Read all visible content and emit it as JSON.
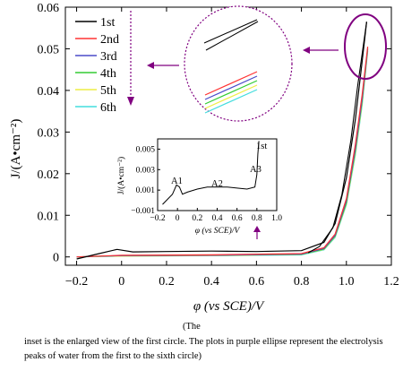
{
  "caption": {
    "lead": "(The",
    "body": "inset is the enlarged view of the first circle. The plots in purple ellipse represent the electrolysis peaks of water from the first to the sixth circle)"
  },
  "colors": {
    "annotation": "#800080",
    "axis": "#000000"
  },
  "chart_data": {
    "type": "line",
    "xlabel": "φ (vs SCE)/V",
    "ylabel": "J/(A•cm⁻²)",
    "xlim": [
      -0.25,
      1.2
    ],
    "ylim": [
      -0.002,
      0.06
    ],
    "x_ticks": [
      "−0.2",
      "0",
      "0.2",
      "0.4",
      "0.6",
      "0.8",
      "1.0",
      "1.2"
    ],
    "y_ticks": [
      "0",
      "0.01",
      "0.02",
      "0.03",
      "0.04",
      "0.05",
      "0.06"
    ],
    "legend_position": "top-left",
    "series": [
      {
        "name": "1st",
        "color": "#000000",
        "x": [
          -0.2,
          -0.1,
          -0.02,
          0.05,
          0.2,
          0.4,
          0.6,
          0.8,
          0.9,
          0.95,
          1.0,
          1.04,
          1.07,
          1.09
        ],
        "y": [
          -0.0005,
          0.0008,
          0.0018,
          0.0012,
          0.0013,
          0.0014,
          0.0013,
          0.0015,
          0.0035,
          0.008,
          0.019,
          0.033,
          0.047,
          0.0565
        ]
      },
      {
        "name": "2nd",
        "color": "#ff3333",
        "x": [
          -0.2,
          0.0,
          0.4,
          0.8,
          0.9,
          0.95,
          1.0,
          1.04,
          1.07,
          1.095
        ],
        "y": [
          0.0,
          0.0004,
          0.0005,
          0.0008,
          0.0022,
          0.0055,
          0.014,
          0.027,
          0.039,
          0.0505
        ]
      },
      {
        "name": "3rd",
        "color": "#4b4bc8",
        "x": [
          -0.2,
          0.0,
          0.4,
          0.8,
          0.9,
          0.95,
          1.0,
          1.04,
          1.07,
          1.095
        ],
        "y": [
          0.0,
          0.0003,
          0.0004,
          0.0007,
          0.002,
          0.0052,
          0.0135,
          0.026,
          0.038,
          0.0502
        ]
      },
      {
        "name": "4th",
        "color": "#33cc33",
        "x": [
          -0.2,
          0.0,
          0.4,
          0.8,
          0.9,
          0.95,
          1.0,
          1.04,
          1.07,
          1.095
        ],
        "y": [
          0.0,
          0.0003,
          0.0004,
          0.0006,
          0.0019,
          0.005,
          0.013,
          0.0255,
          0.0375,
          0.05
        ]
      },
      {
        "name": "5th",
        "color": "#eeee44",
        "x": [
          -0.2,
          0.0,
          0.4,
          0.8,
          0.9,
          0.95,
          1.0,
          1.04,
          1.07,
          1.095
        ],
        "y": [
          0.0,
          0.0002,
          0.0003,
          0.0006,
          0.0018,
          0.0049,
          0.0128,
          0.025,
          0.037,
          0.0498
        ]
      },
      {
        "name": "6th",
        "color": "#44dddd",
        "x": [
          -0.2,
          0.0,
          0.4,
          0.8,
          0.9,
          0.95,
          1.0,
          1.04,
          1.07,
          1.095
        ],
        "y": [
          0.0,
          0.0002,
          0.0003,
          0.0005,
          0.0017,
          0.0047,
          0.0125,
          0.0245,
          0.0365,
          0.0495
        ]
      }
    ],
    "inset": {
      "type": "line",
      "xlabel": "φ (vs SCE)/V",
      "ylabel": "J/(A•cm⁻²)",
      "xlim": [
        -0.2,
        1.0
      ],
      "ylim": [
        -0.001,
        0.006
      ],
      "x_ticks": [
        "−0.2",
        "0",
        "0.2",
        "0.4",
        "0.6",
        "0.8",
        "1.0"
      ],
      "y_ticks": [
        "−0.001",
        "0.001",
        "0.003",
        "0.005"
      ],
      "series_label": "1st",
      "annotations": [
        "A1",
        "A2",
        "A3"
      ],
      "x": [
        -0.15,
        -0.05,
        -0.01,
        0.02,
        0.05,
        0.1,
        0.2,
        0.3,
        0.4,
        0.5,
        0.6,
        0.7,
        0.78,
        0.8,
        0.81,
        0.82
      ],
      "y": [
        -0.0004,
        0.0006,
        0.0015,
        0.0013,
        0.0006,
        0.0008,
        0.0011,
        0.0013,
        0.0013,
        0.0013,
        0.0012,
        0.0011,
        0.0013,
        0.0025,
        0.0045,
        0.0058
      ]
    }
  }
}
